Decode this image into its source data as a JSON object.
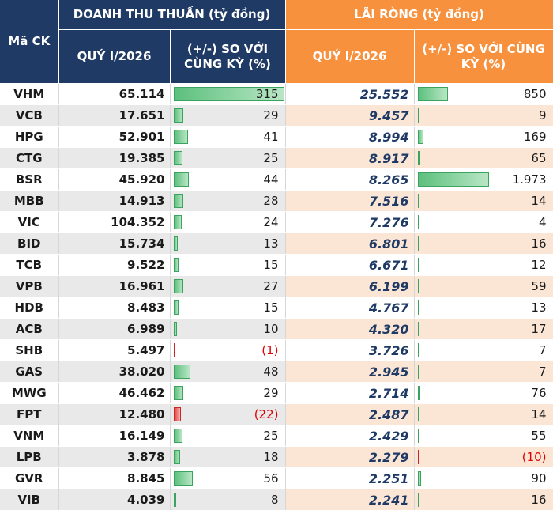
{
  "headers": {
    "ticker": "Mã CK",
    "revenue_group": "DOANH THU THUẦN (tỷ đồng)",
    "profit_group": "LÃI RÒNG (tỷ đồng)",
    "quarter": "QUÝ I/2026",
    "yoy": "(+/-) SO VỚI CÙNG KỲ (%)"
  },
  "colors": {
    "navy": "#1f3a64",
    "orange": "#f7913d",
    "bar_positive": "#5cc07d",
    "bar_negative": "#e64040",
    "negative_text": "#e00000"
  },
  "rows": [
    {
      "ticker": "VHM",
      "revenue": "65.114",
      "revenue_yoy": "315",
      "revenue_yoy_value": 315,
      "profit": "25.552",
      "profit_yoy": "850",
      "profit_yoy_value": 850
    },
    {
      "ticker": "VCB",
      "revenue": "17.651",
      "revenue_yoy": "29",
      "revenue_yoy_value": 29,
      "profit": "9.457",
      "profit_yoy": "9",
      "profit_yoy_value": 9
    },
    {
      "ticker": "HPG",
      "revenue": "52.901",
      "revenue_yoy": "41",
      "revenue_yoy_value": 41,
      "profit": "8.994",
      "profit_yoy": "169",
      "profit_yoy_value": 169
    },
    {
      "ticker": "CTG",
      "revenue": "19.385",
      "revenue_yoy": "25",
      "revenue_yoy_value": 25,
      "profit": "8.917",
      "profit_yoy": "65",
      "profit_yoy_value": 65
    },
    {
      "ticker": "BSR",
      "revenue": "45.920",
      "revenue_yoy": "44",
      "revenue_yoy_value": 44,
      "profit": "8.265",
      "profit_yoy": "1.973",
      "profit_yoy_value": 1973
    },
    {
      "ticker": "MBB",
      "revenue": "14.913",
      "revenue_yoy": "28",
      "revenue_yoy_value": 28,
      "profit": "7.516",
      "profit_yoy": "14",
      "profit_yoy_value": 14
    },
    {
      "ticker": "VIC",
      "revenue": "104.352",
      "revenue_yoy": "24",
      "revenue_yoy_value": 24,
      "profit": "7.276",
      "profit_yoy": "4",
      "profit_yoy_value": 4
    },
    {
      "ticker": "BID",
      "revenue": "15.734",
      "revenue_yoy": "13",
      "revenue_yoy_value": 13,
      "profit": "6.801",
      "profit_yoy": "16",
      "profit_yoy_value": 16
    },
    {
      "ticker": "TCB",
      "revenue": "9.522",
      "revenue_yoy": "15",
      "revenue_yoy_value": 15,
      "profit": "6.671",
      "profit_yoy": "12",
      "profit_yoy_value": 12
    },
    {
      "ticker": "VPB",
      "revenue": "16.961",
      "revenue_yoy": "27",
      "revenue_yoy_value": 27,
      "profit": "6.199",
      "profit_yoy": "59",
      "profit_yoy_value": 59
    },
    {
      "ticker": "HDB",
      "revenue": "8.483",
      "revenue_yoy": "15",
      "revenue_yoy_value": 15,
      "profit": "4.767",
      "profit_yoy": "13",
      "profit_yoy_value": 13
    },
    {
      "ticker": "ACB",
      "revenue": "6.989",
      "revenue_yoy": "10",
      "revenue_yoy_value": 10,
      "profit": "4.320",
      "profit_yoy": "17",
      "profit_yoy_value": 17
    },
    {
      "ticker": "SHB",
      "revenue": "5.497",
      "revenue_yoy": "(1)",
      "revenue_yoy_value": -1,
      "profit": "3.726",
      "profit_yoy": "7",
      "profit_yoy_value": 7
    },
    {
      "ticker": "GAS",
      "revenue": "38.020",
      "revenue_yoy": "48",
      "revenue_yoy_value": 48,
      "profit": "2.945",
      "profit_yoy": "7",
      "profit_yoy_value": 7
    },
    {
      "ticker": "MWG",
      "revenue": "46.462",
      "revenue_yoy": "29",
      "revenue_yoy_value": 29,
      "profit": "2.714",
      "profit_yoy": "76",
      "profit_yoy_value": 76
    },
    {
      "ticker": "FPT",
      "revenue": "12.480",
      "revenue_yoy": "(22)",
      "revenue_yoy_value": -22,
      "profit": "2.487",
      "profit_yoy": "14",
      "profit_yoy_value": 14
    },
    {
      "ticker": "VNM",
      "revenue": "16.149",
      "revenue_yoy": "25",
      "revenue_yoy_value": 25,
      "profit": "2.429",
      "profit_yoy": "55",
      "profit_yoy_value": 55
    },
    {
      "ticker": "LPB",
      "revenue": "3.878",
      "revenue_yoy": "18",
      "revenue_yoy_value": 18,
      "profit": "2.279",
      "profit_yoy": "(10)",
      "profit_yoy_value": -10
    },
    {
      "ticker": "GVR",
      "revenue": "8.845",
      "revenue_yoy": "56",
      "revenue_yoy_value": 56,
      "profit": "2.251",
      "profit_yoy": "90",
      "profit_yoy_value": 90
    },
    {
      "ticker": "VIB",
      "revenue": "4.039",
      "revenue_yoy": "8",
      "revenue_yoy_value": 8,
      "profit": "2.241",
      "profit_yoy": "16",
      "profit_yoy_value": 16
    }
  ]
}
